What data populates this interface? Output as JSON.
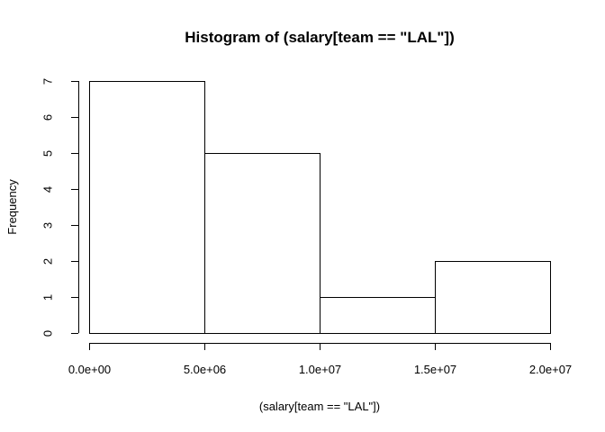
{
  "chart_data": {
    "type": "bar",
    "title": "Histogram of (salary[team == \"LAL\"])",
    "xlabel": "(salary[team == \"LAL\"])",
    "ylabel": "Frequency",
    "bins": [
      {
        "start": 0,
        "end": 5000000,
        "count": 7
      },
      {
        "start": 5000000,
        "end": 10000000,
        "count": 5
      },
      {
        "start": 10000000,
        "end": 15000000,
        "count": 1
      },
      {
        "start": 15000000,
        "end": 20000000,
        "count": 2
      }
    ],
    "xlim": [
      0,
      20000000
    ],
    "ylim": [
      0,
      7
    ],
    "xticks": [
      0,
      5000000,
      10000000,
      15000000,
      20000000
    ],
    "xtick_labels": [
      "0.0e+00",
      "5.0e+06",
      "1.0e+07",
      "1.5e+07",
      "2.0e+07"
    ],
    "yticks": [
      0,
      1,
      2,
      3,
      4,
      5,
      6,
      7
    ],
    "ytick_labels": [
      "0",
      "1",
      "2",
      "3",
      "4",
      "5",
      "6",
      "7"
    ],
    "bar_fill": "#ffffff",
    "bar_stroke": "#000000",
    "grid": false
  }
}
